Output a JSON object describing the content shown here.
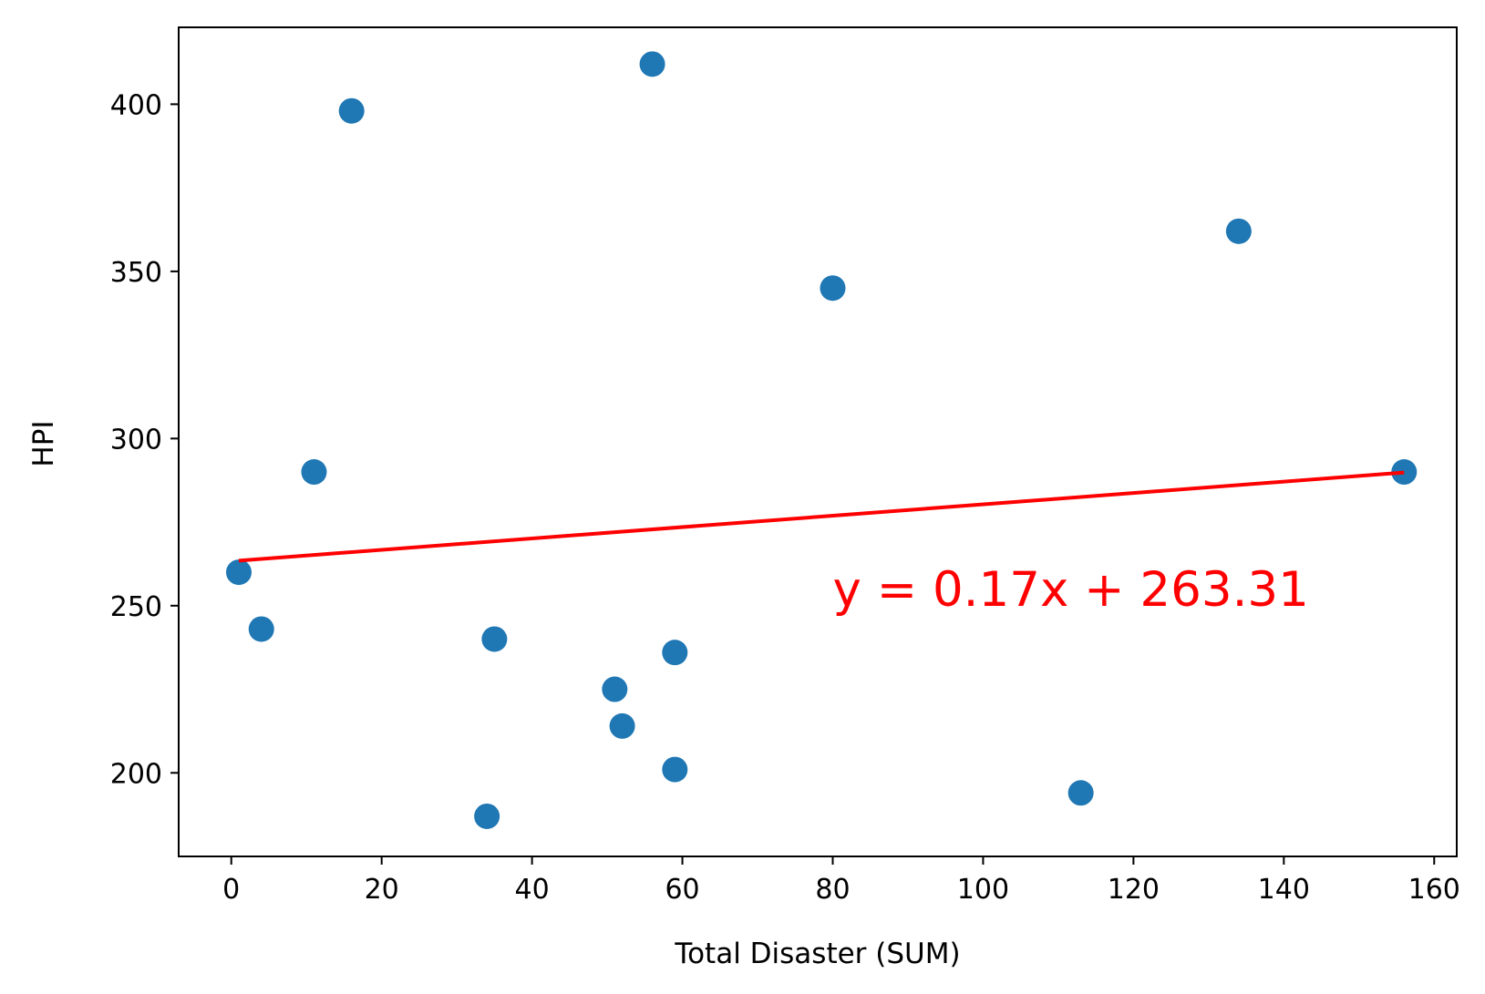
{
  "chart_data": {
    "type": "scatter",
    "title": "",
    "xlabel": "Total Disaster (SUM)",
    "ylabel": "HPI",
    "xlim": [
      -7,
      163
    ],
    "ylim": [
      175,
      423
    ],
    "x_ticks": [
      0,
      20,
      40,
      60,
      80,
      100,
      120,
      140,
      160
    ],
    "y_ticks": [
      200,
      250,
      300,
      350,
      400
    ],
    "grid": false,
    "legend": "none",
    "point_color": "#1f77b4",
    "points": [
      {
        "x": 1,
        "y": 260
      },
      {
        "x": 4,
        "y": 243
      },
      {
        "x": 11,
        "y": 290
      },
      {
        "x": 16,
        "y": 398
      },
      {
        "x": 34,
        "y": 187
      },
      {
        "x": 35,
        "y": 240
      },
      {
        "x": 51,
        "y": 225
      },
      {
        "x": 52,
        "y": 214
      },
      {
        "x": 56,
        "y": 412
      },
      {
        "x": 59,
        "y": 236
      },
      {
        "x": 59,
        "y": 201
      },
      {
        "x": 80,
        "y": 345
      },
      {
        "x": 113,
        "y": 194
      },
      {
        "x": 134,
        "y": 362
      },
      {
        "x": 156,
        "y": 290
      }
    ],
    "regression": {
      "slope": 0.17,
      "intercept": 263.31,
      "x_range": [
        1,
        156
      ],
      "color": "#ff0000"
    },
    "annotation": {
      "text": "y = 0.17x + 263.31",
      "x": 80,
      "y": 250,
      "color": "#ff0000"
    }
  }
}
